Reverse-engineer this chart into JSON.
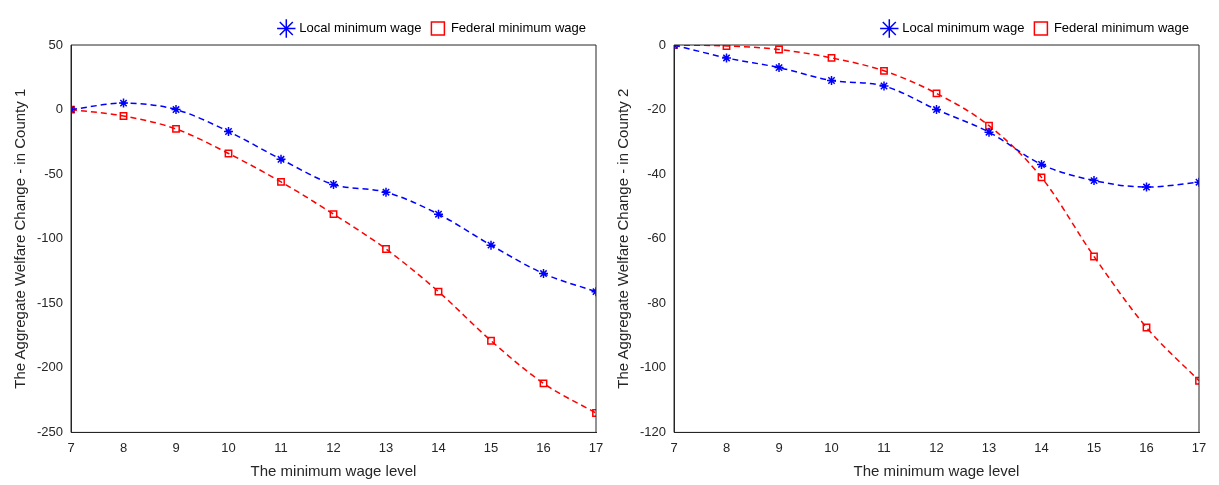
{
  "chart_data": [
    {
      "type": "line",
      "xlabel": "The minimum wage level",
      "ylabel": "The Aggregate Welfare Change - in County 1",
      "x": [
        7,
        8,
        9,
        10,
        11,
        12,
        13,
        14,
        15,
        16,
        17
      ],
      "xlim": [
        7,
        17
      ],
      "xticks": [
        7,
        8,
        9,
        10,
        11,
        12,
        13,
        14,
        15,
        16,
        17
      ],
      "ylim": [
        -250,
        50
      ],
      "yticks": [
        -250,
        -200,
        -150,
        -100,
        -50,
        0,
        50
      ],
      "grid": false,
      "legend": "top right",
      "line_style": "dashed",
      "series": [
        {
          "name": "Local minimum wage",
          "color": "#0000ff",
          "marker": "cross",
          "values": [
            0,
            5,
            0,
            -17,
            -38.5,
            -58,
            -64,
            -81,
            -105,
            -127,
            -141
          ]
        },
        {
          "name": "Federal minimum wage",
          "color": "#ff0000",
          "marker": "square",
          "values": [
            0,
            -5,
            -15,
            -34,
            -56,
            -81,
            -108,
            -141,
            -179,
            -212,
            -235
          ]
        }
      ]
    },
    {
      "type": "line",
      "xlabel": "The minimum wage level",
      "ylabel": "The Aggregate Welfare Change - in County 2",
      "x": [
        7,
        8,
        9,
        10,
        11,
        12,
        13,
        14,
        15,
        16,
        17
      ],
      "xlim": [
        7,
        17
      ],
      "xticks": [
        7,
        8,
        9,
        10,
        11,
        12,
        13,
        14,
        15,
        16,
        17
      ],
      "ylim": [
        -120,
        0
      ],
      "yticks": [
        -120,
        -100,
        -80,
        -60,
        -40,
        -20,
        0
      ],
      "grid": false,
      "legend": "top right",
      "line_style": "dashed",
      "series": [
        {
          "name": "Local minimum wage",
          "color": "#0000ff",
          "marker": "cross",
          "values": [
            0,
            -4,
            -7,
            -11,
            -12.7,
            -20,
            -27,
            -37,
            -42,
            -44,
            -42.5
          ]
        },
        {
          "name": "Federal minimum wage",
          "color": "#ff0000",
          "marker": "square",
          "values": [
            0,
            -0.3,
            -1.4,
            -4,
            -8,
            -15,
            -25,
            -41,
            -65.5,
            -87.5,
            -104
          ]
        }
      ]
    }
  ]
}
